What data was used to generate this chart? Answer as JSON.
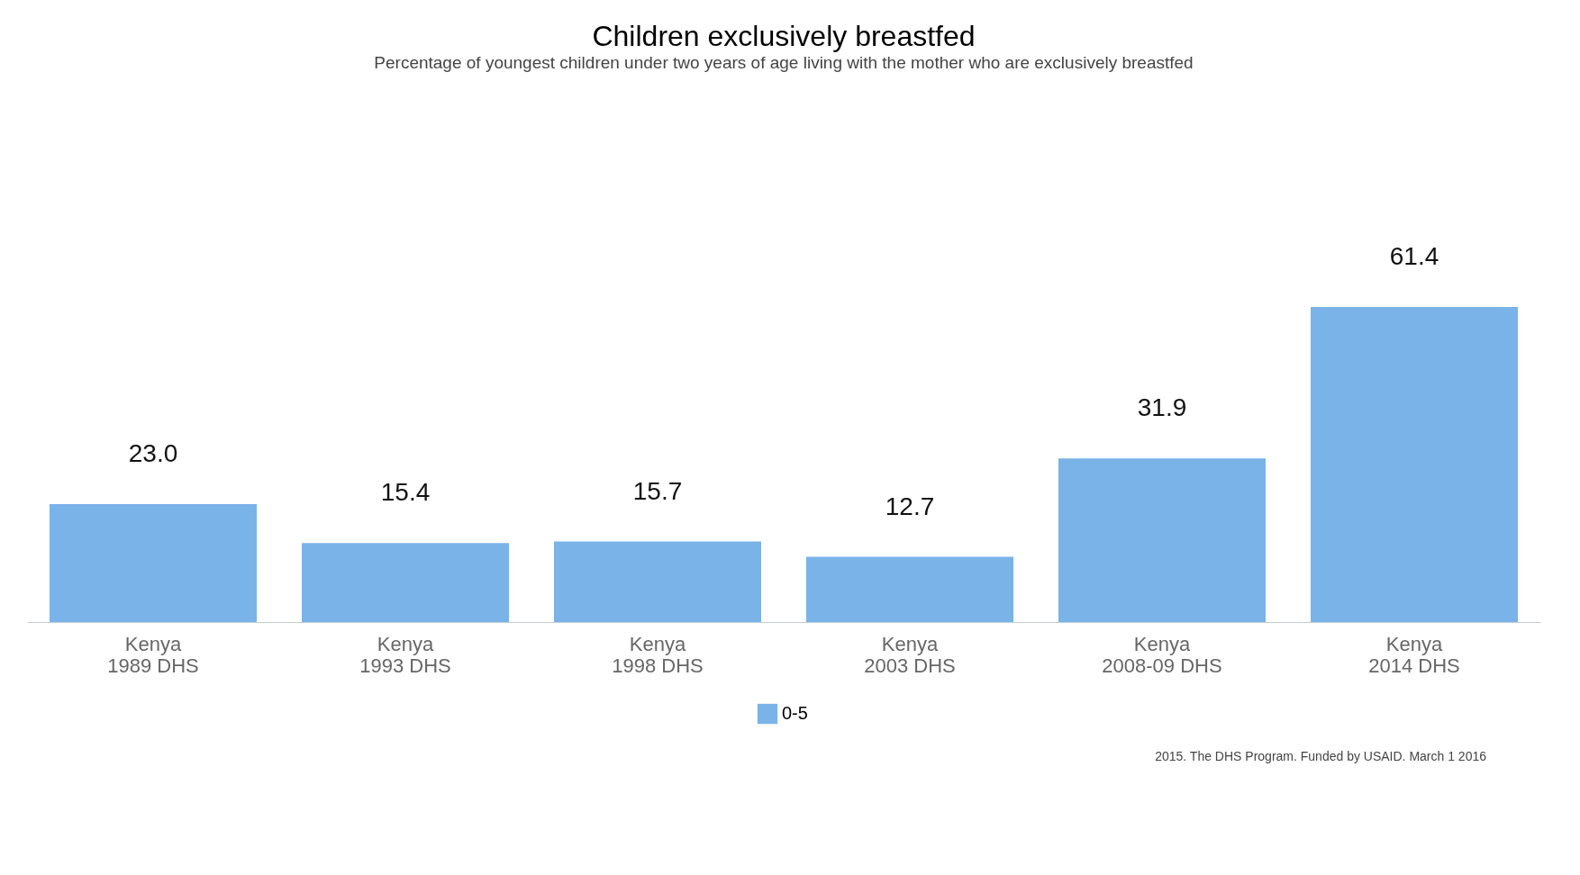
{
  "chart_data": {
    "type": "bar",
    "title": "Children exclusively breastfed",
    "subtitle": "Percentage of youngest children under two years of age living with the mother who are exclusively breastfed",
    "categories": [
      "Kenya\n1989 DHS",
      "Kenya\n1993 DHS",
      "Kenya\n1998 DHS",
      "Kenya\n2003 DHS",
      "Kenya\n2008-09 DHS",
      "Kenya\n2014 DHS"
    ],
    "series": [
      {
        "name": "0-5",
        "color": "#7ab3e8",
        "values": [
          23.0,
          15.4,
          15.7,
          12.7,
          31.9,
          61.4
        ],
        "value_labels": [
          "23.0",
          "15.4",
          "15.7",
          "12.7",
          "31.9",
          "61.4"
        ]
      }
    ],
    "legend": "bottom",
    "grid": false,
    "annotations": [
      "2015. The DHS Program. Funded by USAID. March 1 2016"
    ]
  }
}
